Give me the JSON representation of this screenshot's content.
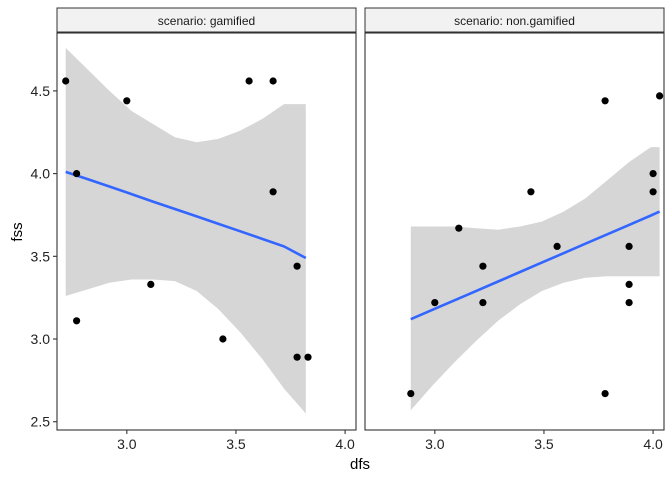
{
  "chart_data": {
    "type": "scatter",
    "xlabel": "dfs",
    "ylabel": "fss",
    "xlim": [
      2.68,
      4.05
    ],
    "ylim": [
      2.45,
      4.85
    ],
    "x_ticks": [
      "3.0",
      "3.5",
      "4.0"
    ],
    "y_ticks": [
      "2.5",
      "3.0",
      "3.5",
      "4.0",
      "4.5"
    ],
    "x_tick_values": [
      3.0,
      3.5,
      4.0
    ],
    "y_tick_values": [
      2.5,
      3.0,
      3.5,
      4.0,
      4.5
    ],
    "grid": false,
    "facets": [
      {
        "label": "scenario: gamified",
        "points": [
          {
            "x": 2.72,
            "y": 4.56
          },
          {
            "x": 2.77,
            "y": 4.0
          },
          {
            "x": 2.77,
            "y": 3.11
          },
          {
            "x": 3.0,
            "y": 4.44
          },
          {
            "x": 3.11,
            "y": 3.33
          },
          {
            "x": 3.44,
            "y": 3.0
          },
          {
            "x": 3.56,
            "y": 4.56
          },
          {
            "x": 3.67,
            "y": 4.56
          },
          {
            "x": 3.67,
            "y": 3.89
          },
          {
            "x": 3.78,
            "y": 3.44
          },
          {
            "x": 3.78,
            "y": 2.89
          },
          {
            "x": 3.83,
            "y": 2.89
          }
        ],
        "fit": {
          "x": [
            2.72,
            2.82,
            2.92,
            3.02,
            3.12,
            3.22,
            3.32,
            3.42,
            3.52,
            3.62,
            3.72,
            3.82
          ],
          "y": [
            4.01,
            3.967,
            3.922,
            3.877,
            3.831,
            3.786,
            3.741,
            3.696,
            3.651,
            3.605,
            3.56,
            3.49
          ],
          "lower": [
            3.26,
            3.3,
            3.34,
            3.36,
            3.36,
            3.35,
            3.29,
            3.18,
            3.04,
            2.88,
            2.7,
            2.55
          ],
          "upper": [
            4.76,
            4.63,
            4.5,
            4.38,
            4.3,
            4.22,
            4.19,
            4.21,
            4.26,
            4.33,
            4.42,
            4.42
          ]
        }
      },
      {
        "label": "scenario: non.gamified",
        "points": [
          {
            "x": 2.89,
            "y": 2.67
          },
          {
            "x": 3.0,
            "y": 3.22
          },
          {
            "x": 3.11,
            "y": 3.67
          },
          {
            "x": 3.22,
            "y": 3.44
          },
          {
            "x": 3.22,
            "y": 3.22
          },
          {
            "x": 3.44,
            "y": 3.89
          },
          {
            "x": 3.56,
            "y": 3.56
          },
          {
            "x": 3.78,
            "y": 4.44
          },
          {
            "x": 3.78,
            "y": 2.67
          },
          {
            "x": 3.89,
            "y": 3.56
          },
          {
            "x": 3.89,
            "y": 3.33
          },
          {
            "x": 3.89,
            "y": 3.22
          },
          {
            "x": 4.0,
            "y": 4.0
          },
          {
            "x": 4.0,
            "y": 3.89
          },
          {
            "x": 4.03,
            "y": 4.47
          }
        ],
        "fit": {
          "x": [
            2.89,
            2.99,
            3.09,
            3.19,
            3.29,
            3.39,
            3.49,
            3.59,
            3.69,
            3.79,
            3.89,
            3.99,
            4.03
          ],
          "y": [
            3.12,
            3.177,
            3.234,
            3.291,
            3.348,
            3.405,
            3.462,
            3.519,
            3.576,
            3.633,
            3.69,
            3.747,
            3.77
          ],
          "lower": [
            2.57,
            2.72,
            2.86,
            2.99,
            3.11,
            3.21,
            3.29,
            3.34,
            3.37,
            3.38,
            3.38,
            3.38,
            3.38
          ],
          "upper": [
            3.68,
            3.68,
            3.68,
            3.67,
            3.66,
            3.68,
            3.71,
            3.77,
            3.85,
            3.96,
            4.07,
            4.16,
            4.16
          ]
        }
      }
    ]
  },
  "colors": {
    "point": "#000000",
    "fit_line": "#3366FF",
    "ribbon": "#D6D6D6",
    "strip_fill": "#F2F2F2",
    "panel_border": "#333333"
  }
}
